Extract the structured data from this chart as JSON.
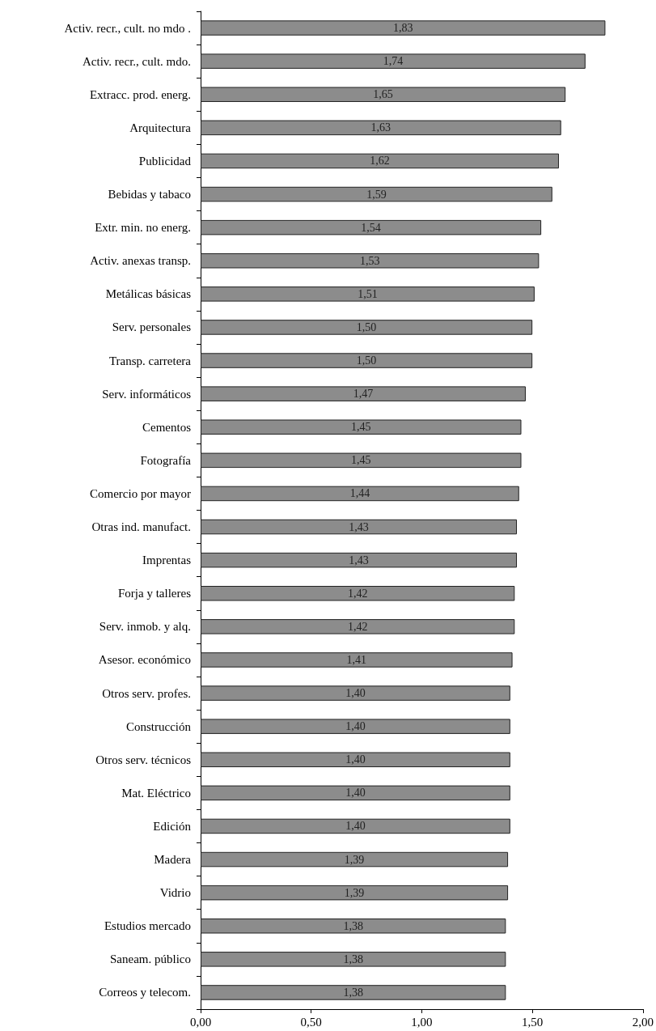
{
  "chart_data": {
    "type": "bar",
    "orientation": "horizontal",
    "categories": [
      "Activ. recr., cult. no mdo .",
      "Activ. recr., cult. mdo.",
      "Extracc. prod. energ.",
      "Arquitectura",
      "Publicidad",
      "Bebidas y tabaco",
      "Extr. min. no energ.",
      "Activ. anexas transp.",
      "Metálicas básicas",
      "Serv. personales",
      "Transp. carretera",
      "Serv. informáticos",
      "Cementos",
      "Fotografía",
      "Comercio por mayor",
      "Otras ind. manufact.",
      "Imprentas",
      "Forja y talleres",
      "Serv. inmob. y alq.",
      "Asesor. económico",
      "Otros serv. profes.",
      "Construcción",
      "Otros serv. técnicos",
      "Mat. Eléctrico",
      "Edición",
      "Madera",
      "Vidrio",
      "Estudios mercado",
      "Saneam. público",
      "Correos y telecom."
    ],
    "values": [
      1.83,
      1.74,
      1.65,
      1.63,
      1.62,
      1.59,
      1.54,
      1.53,
      1.51,
      1.5,
      1.5,
      1.47,
      1.45,
      1.45,
      1.44,
      1.43,
      1.43,
      1.42,
      1.42,
      1.41,
      1.4,
      1.4,
      1.4,
      1.4,
      1.4,
      1.39,
      1.39,
      1.38,
      1.38,
      1.38
    ],
    "value_labels": [
      "1,83",
      "1,74",
      "1,65",
      "1,63",
      "1,62",
      "1,59",
      "1,54",
      "1,53",
      "1,51",
      "1,50",
      "1,50",
      "1,47",
      "1,45",
      "1,45",
      "1,44",
      "1,43",
      "1,43",
      "1,42",
      "1,42",
      "1,41",
      "1,40",
      "1,40",
      "1,40",
      "1,40",
      "1,40",
      "1,39",
      "1,39",
      "1,38",
      "1,38",
      "1,38"
    ],
    "color": "#8c8c8c",
    "xlim": [
      0,
      2
    ],
    "xticks": [
      {
        "value": 0,
        "label": "0,00"
      },
      {
        "value": 0.5,
        "label": "0,50"
      },
      {
        "value": 1,
        "label": "1,00"
      },
      {
        "value": 1.5,
        "label": "1,50"
      },
      {
        "value": 2,
        "label": "2,00"
      }
    ],
    "grid": false
  }
}
